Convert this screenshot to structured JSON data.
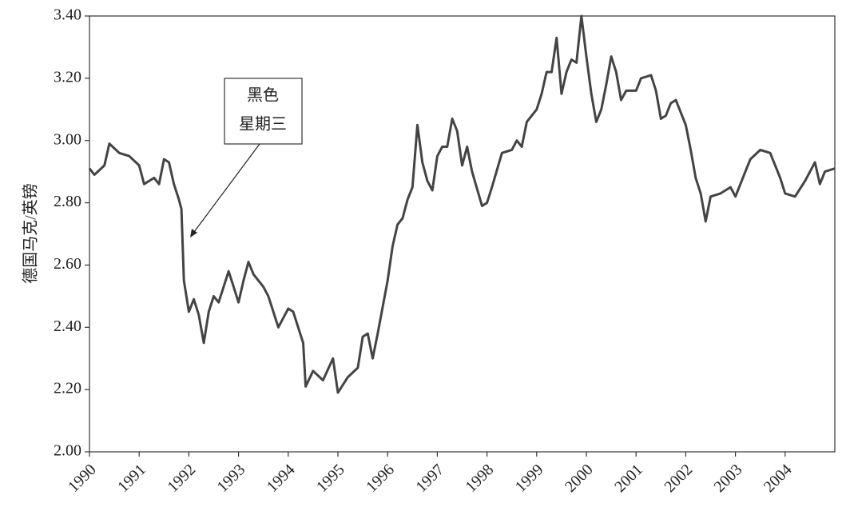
{
  "chart_data": {
    "type": "line",
    "y_label": "德国马克/英镑",
    "annotation": [
      "黑色",
      "星期三"
    ],
    "xlim": [
      1990,
      2005
    ],
    "xticks": [
      1990,
      1991,
      1992,
      1993,
      1994,
      1995,
      1996,
      1997,
      1998,
      1999,
      2000,
      2001,
      2002,
      2003,
      2004
    ],
    "ylim": [
      2.0,
      3.4
    ],
    "yticks": [
      {
        "value": 2.0,
        "label": "2.00"
      },
      {
        "value": 2.2,
        "label": "2.20"
      },
      {
        "value": 2.4,
        "label": "2.40"
      },
      {
        "value": 2.6,
        "label": "2.60"
      },
      {
        "value": 2.8,
        "label": "2.80"
      },
      {
        "value": 3.0,
        "label": "3.00"
      },
      {
        "value": 3.2,
        "label": "3.20"
      },
      {
        "value": 3.4,
        "label": "3.40"
      }
    ],
    "x": [
      1990.0,
      1990.1,
      1990.3,
      1990.4,
      1990.6,
      1990.8,
      1991.0,
      1991.1,
      1991.3,
      1991.4,
      1991.5,
      1991.6,
      1991.7,
      1991.8,
      1991.85,
      1991.9,
      1992.0,
      1992.1,
      1992.2,
      1992.3,
      1992.4,
      1992.5,
      1992.6,
      1992.8,
      1993.0,
      1993.1,
      1993.2,
      1993.3,
      1993.5,
      1993.6,
      1993.8,
      1994.0,
      1994.1,
      1994.3,
      1994.35,
      1994.5,
      1994.7,
      1994.9,
      1995.0,
      1995.2,
      1995.4,
      1995.5,
      1995.6,
      1995.7,
      1995.8,
      1996.0,
      1996.1,
      1996.2,
      1996.3,
      1996.4,
      1996.5,
      1996.6,
      1996.7,
      1996.8,
      1996.9,
      1997.0,
      1997.1,
      1997.2,
      1997.3,
      1997.4,
      1997.5,
      1997.6,
      1997.7,
      1997.9,
      1998.0,
      1998.1,
      1998.3,
      1998.5,
      1998.6,
      1998.7,
      1998.8,
      1999.0,
      1999.1,
      1999.2,
      1999.3,
      1999.4,
      1999.5,
      1999.6,
      1999.7,
      1999.8,
      1999.9,
      2000.0,
      2000.1,
      2000.2,
      2000.3,
      2000.4,
      2000.5,
      2000.6,
      2000.7,
      2000.8,
      2001.0,
      2001.1,
      2001.3,
      2001.4,
      2001.5,
      2001.6,
      2001.7,
      2001.8,
      2002.0,
      2002.1,
      2002.2,
      2002.3,
      2002.4,
      2002.5,
      2002.7,
      2002.9,
      2003.0,
      2003.2,
      2003.3,
      2003.5,
      2003.7,
      2003.9,
      2004.0,
      2004.2,
      2004.4,
      2004.6,
      2004.7,
      2004.8,
      2005.0
    ],
    "series": [
      {
        "color": "#444444",
        "values": [
          2.91,
          2.89,
          2.92,
          2.99,
          2.96,
          2.95,
          2.92,
          2.86,
          2.88,
          2.86,
          2.94,
          2.93,
          2.86,
          2.81,
          2.78,
          2.55,
          2.45,
          2.49,
          2.44,
          2.35,
          2.45,
          2.5,
          2.48,
          2.58,
          2.48,
          2.55,
          2.61,
          2.57,
          2.53,
          2.5,
          2.4,
          2.46,
          2.45,
          2.35,
          2.21,
          2.26,
          2.23,
          2.3,
          2.19,
          2.24,
          2.27,
          2.37,
          2.38,
          2.3,
          2.38,
          2.55,
          2.66,
          2.73,
          2.75,
          2.81,
          2.85,
          3.05,
          2.93,
          2.87,
          2.84,
          2.95,
          2.98,
          2.98,
          3.07,
          3.03,
          2.92,
          2.98,
          2.9,
          2.79,
          2.8,
          2.85,
          2.96,
          2.97,
          3.0,
          2.98,
          3.06,
          3.1,
          3.15,
          3.22,
          3.22,
          3.33,
          3.15,
          3.22,
          3.26,
          3.25,
          3.4,
          3.27,
          3.15,
          3.06,
          3.1,
          3.18,
          3.27,
          3.22,
          3.13,
          3.16,
          3.16,
          3.2,
          3.21,
          3.16,
          3.07,
          3.08,
          3.12,
          3.13,
          3.05,
          2.97,
          2.88,
          2.83,
          2.74,
          2.82,
          2.83,
          2.85,
          2.82,
          2.9,
          2.94,
          2.97,
          2.96,
          2.88,
          2.83,
          2.82,
          2.87,
          2.93,
          2.86,
          2.9,
          2.91
        ]
      }
    ]
  }
}
